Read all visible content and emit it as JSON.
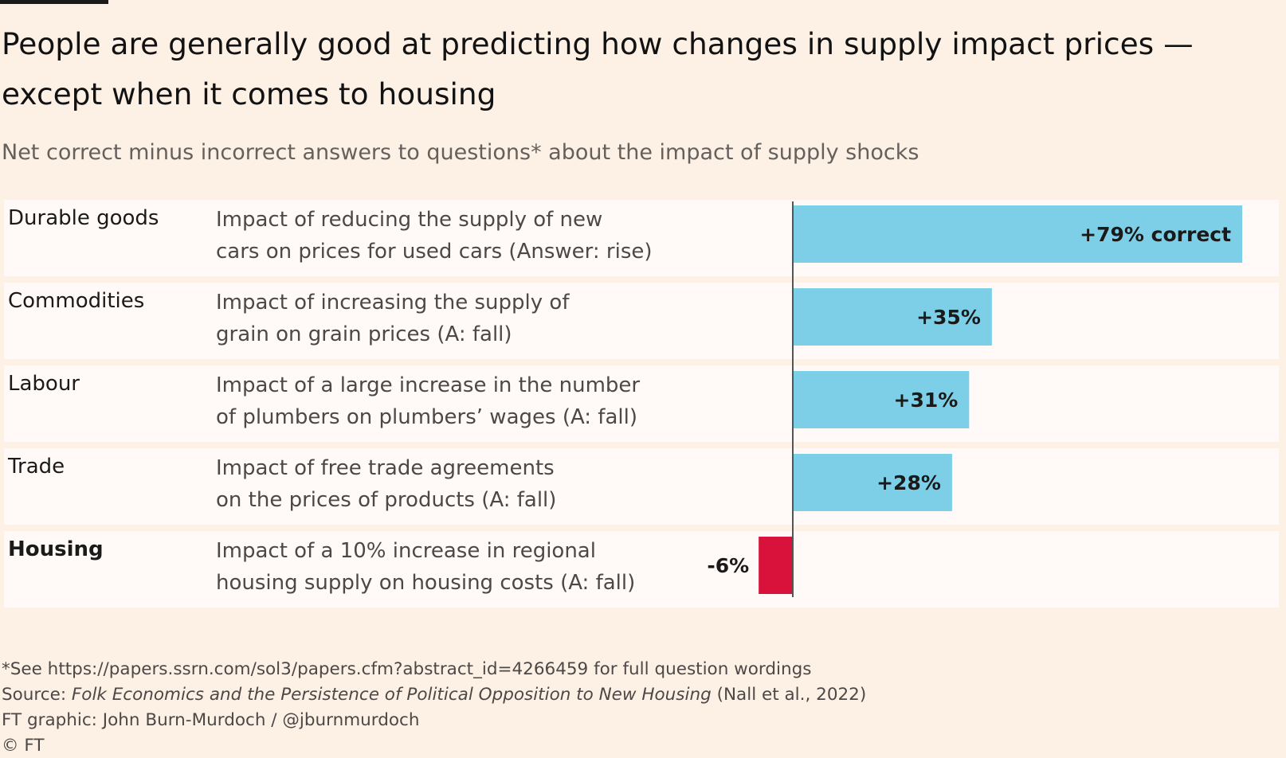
{
  "title_line1": "People are generally good at predicting how changes in supply impact prices —",
  "title_line2": "except when it comes to housing",
  "subtitle": "Net correct minus incorrect answers to questions* about the impact of supply shocks",
  "rows": [
    {
      "label": "Durable goods",
      "desc_line1": "Impact of reducing the supply of new",
      "desc_line2": "cars on prices for used cars (Answer: rise)"
    },
    {
      "label": "Commodities",
      "desc_line1": "Impact of increasing the supply of",
      "desc_line2": "grain on grain prices (A: fall)"
    },
    {
      "label": "Labour",
      "desc_line1": "Impact of a large increase in the number",
      "desc_line2": "of plumbers on plumbers’ wages (A: fall)"
    },
    {
      "label": "Trade",
      "desc_line1": "Impact of free trade agreements",
      "desc_line2": "on the prices of products (A: fall)"
    },
    {
      "label": "Housing",
      "desc_line1": "Impact of a 10% increase in regional",
      "desc_line2": "housing supply on housing costs (A: fall)"
    }
  ],
  "chart_data": {
    "type": "bar",
    "orientation": "horizontal",
    "categories": [
      "Durable goods",
      "Commodities",
      "Labour",
      "Trade",
      "Housing"
    ],
    "values": [
      79,
      35,
      31,
      28,
      -6
    ],
    "data_labels": [
      "+79% correct",
      "+35%",
      "+31%",
      "+28%",
      "-6%"
    ],
    "xlim": [
      -6,
      79
    ],
    "colors": {
      "positive": "#7dcfe7",
      "negative": "#d8123a",
      "axis": "#555555"
    }
  },
  "footer": {
    "note": "*See https://papers.ssrn.com/sol3/papers.cfm?abstract_id=4266459 for full question wordings",
    "source_prefix": "Source: ",
    "source_title": "Folk Economics and the Persistence of Political Opposition to New Housing",
    "source_suffix": " (Nall et al., 2022)",
    "credit": "FT graphic: John Burn-Murdoch / @jburnmurdoch",
    "copyright": "© FT"
  }
}
